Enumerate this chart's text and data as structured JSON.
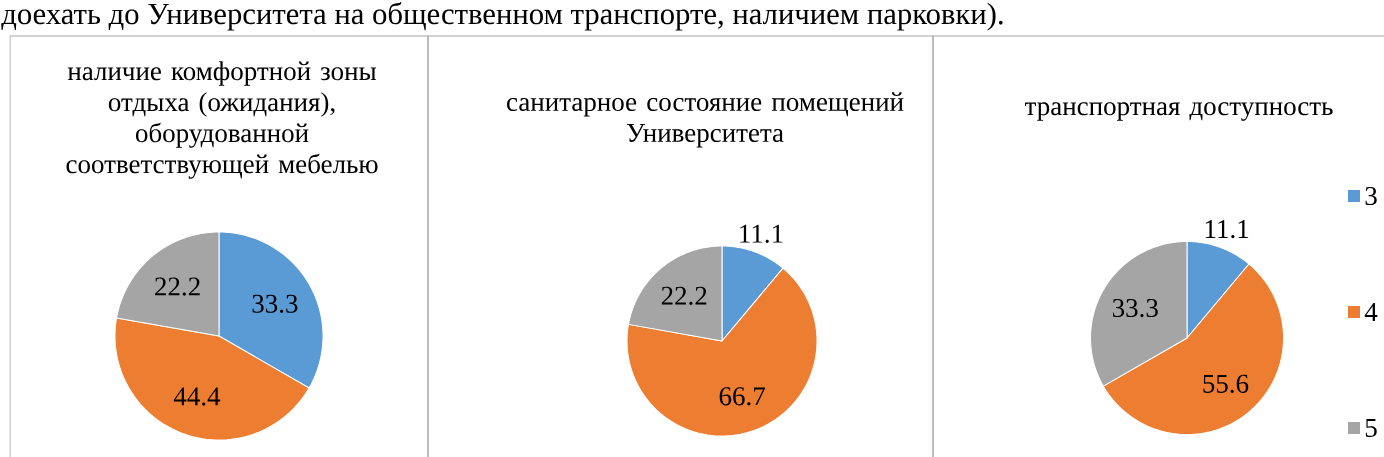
{
  "chart_data": [
    {
      "type": "pie",
      "title": "наличие комфортной зоны отдыха (ожидания), оборудованной соответствующей мебелью",
      "categories": [
        null,
        null,
        null
      ],
      "values": [
        33.3,
        44.4,
        22.2
      ],
      "colors": [
        "#5b9bd5",
        "#ed7d31",
        "#a5a5a5"
      ],
      "data_labels": true,
      "annotations": [
        "доехать до Университета на общественном транспорте, наличием парковки)."
      ]
    },
    {
      "type": "pie",
      "title": "санитарное состояние помещений Университета",
      "categories": [
        null,
        null,
        null
      ],
      "values": [
        11.1,
        66.7,
        22.2
      ],
      "colors": [
        "#5b9bd5",
        "#ed7d31",
        "#a5a5a5"
      ],
      "data_labels": true
    },
    {
      "type": "pie",
      "title": "транспортная доступность",
      "categories": [
        "3",
        "4",
        "5"
      ],
      "values": [
        11.1,
        55.6,
        33.3
      ],
      "colors": [
        "#5b9bd5",
        "#ed7d31",
        "#a5a5a5"
      ],
      "data_labels": true,
      "legend": "right"
    }
  ]
}
